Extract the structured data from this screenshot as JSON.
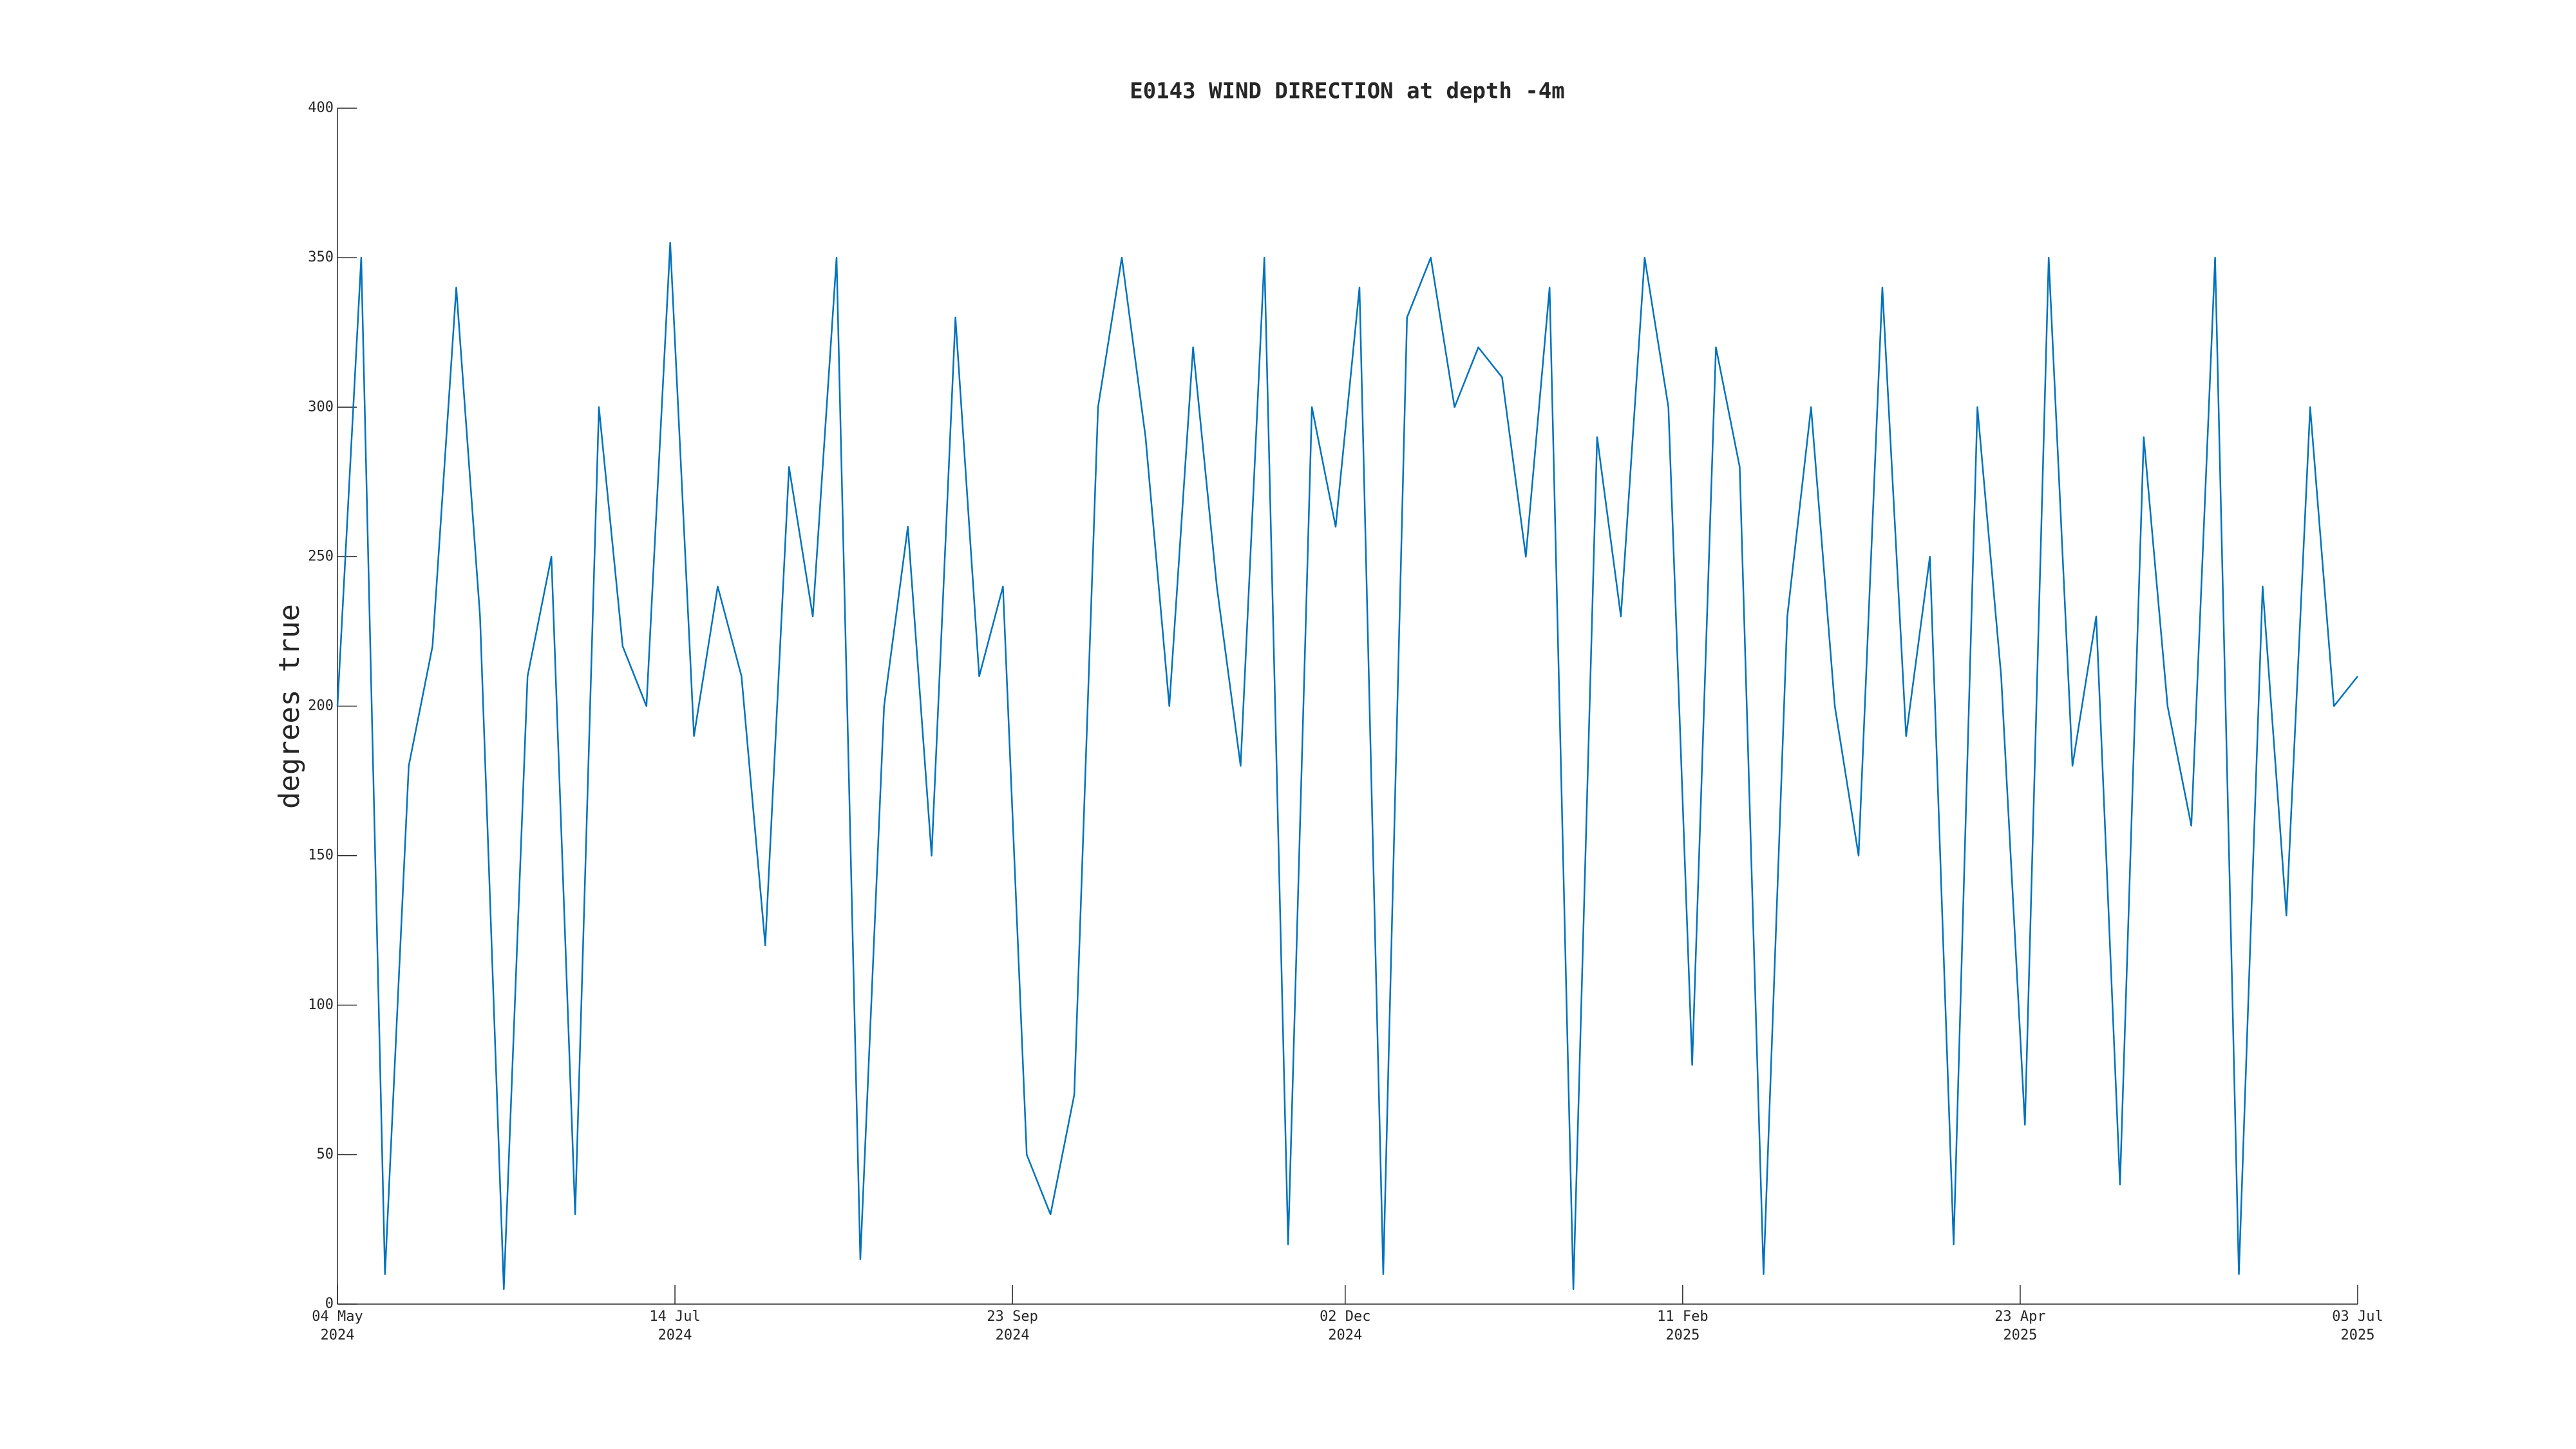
{
  "chart_data": {
    "type": "line",
    "title": "E0143 WIND DIRECTION at depth -4m",
    "ylabel": "degrees true",
    "color": "#0072bd",
    "x": [
      "2024-05-04",
      "2024-05-09",
      "2024-05-14",
      "2024-05-19",
      "2024-05-24",
      "2024-05-29",
      "2024-06-03",
      "2024-06-08",
      "2024-06-13",
      "2024-06-18",
      "2024-06-23",
      "2024-06-28",
      "2024-07-03",
      "2024-07-08",
      "2024-07-13",
      "2024-07-18",
      "2024-07-23",
      "2024-07-28",
      "2024-08-02",
      "2024-08-07",
      "2024-08-12",
      "2024-08-17",
      "2024-08-22",
      "2024-08-27",
      "2024-09-01",
      "2024-09-06",
      "2024-09-11",
      "2024-09-16",
      "2024-09-21",
      "2024-09-26",
      "2024-10-01",
      "2024-10-06",
      "2024-10-11",
      "2024-10-16",
      "2024-10-21",
      "2024-10-26",
      "2024-10-31",
      "2024-11-05",
      "2024-11-10",
      "2024-11-15",
      "2024-11-20",
      "2024-11-25",
      "2024-11-30",
      "2024-12-05",
      "2024-12-10",
      "2024-12-15",
      "2024-12-20",
      "2024-12-25",
      "2024-12-30",
      "2025-01-04",
      "2025-01-09",
      "2025-01-14",
      "2025-01-19",
      "2025-01-24",
      "2025-01-29",
      "2025-02-03",
      "2025-02-08",
      "2025-02-13",
      "2025-02-18",
      "2025-02-23",
      "2025-02-28",
      "2025-03-05",
      "2025-03-10",
      "2025-03-15",
      "2025-03-20",
      "2025-03-25",
      "2025-03-30",
      "2025-04-04",
      "2025-04-09",
      "2025-04-14",
      "2025-04-19",
      "2025-04-24",
      "2025-04-29",
      "2025-05-04",
      "2025-05-09",
      "2025-05-14",
      "2025-05-19",
      "2025-05-24",
      "2025-05-29",
      "2025-06-03",
      "2025-06-08",
      "2025-06-13",
      "2025-06-18",
      "2025-06-23",
      "2025-06-28",
      "2025-07-03"
    ],
    "values": [
      200,
      350,
      10,
      180,
      220,
      340,
      230,
      5,
      210,
      250,
      30,
      300,
      220,
      200,
      355,
      190,
      240,
      210,
      120,
      280,
      230,
      350,
      15,
      200,
      260,
      150,
      330,
      210,
      240,
      50,
      30,
      70,
      300,
      350,
      290,
      200,
      320,
      240,
      180,
      350,
      20,
      300,
      260,
      340,
      10,
      330,
      350,
      300,
      320,
      310,
      250,
      340,
      5,
      290,
      230,
      350,
      300,
      80,
      320,
      280,
      10,
      230,
      300,
      200,
      150,
      340,
      190,
      250,
      20,
      300,
      210,
      60,
      350,
      180,
      230,
      40,
      290,
      200,
      160,
      350,
      10,
      240,
      130,
      300,
      200,
      210
    ],
    "xlim": [
      "2024-05-04",
      "2025-07-03"
    ],
    "xticks": [
      {
        "value": "2024-05-04",
        "label": [
          "04 May",
          "2024"
        ]
      },
      {
        "value": "2024-07-14",
        "label": [
          "14 Jul",
          "2024"
        ]
      },
      {
        "value": "2024-09-23",
        "label": [
          "23 Sep",
          "2024"
        ]
      },
      {
        "value": "2024-12-02",
        "label": [
          "02 Dec",
          "2024"
        ]
      },
      {
        "value": "2025-02-11",
        "label": [
          "11 Feb",
          "2025"
        ]
      },
      {
        "value": "2025-04-23",
        "label": [
          "23 Apr",
          "2025"
        ]
      },
      {
        "value": "2025-07-03",
        "label": [
          "03 Jul",
          "2025"
        ]
      }
    ],
    "ylim": [
      0,
      400
    ],
    "yticks": [
      0,
      50,
      100,
      150,
      200,
      250,
      300,
      350,
      400
    ],
    "grid": false
  }
}
